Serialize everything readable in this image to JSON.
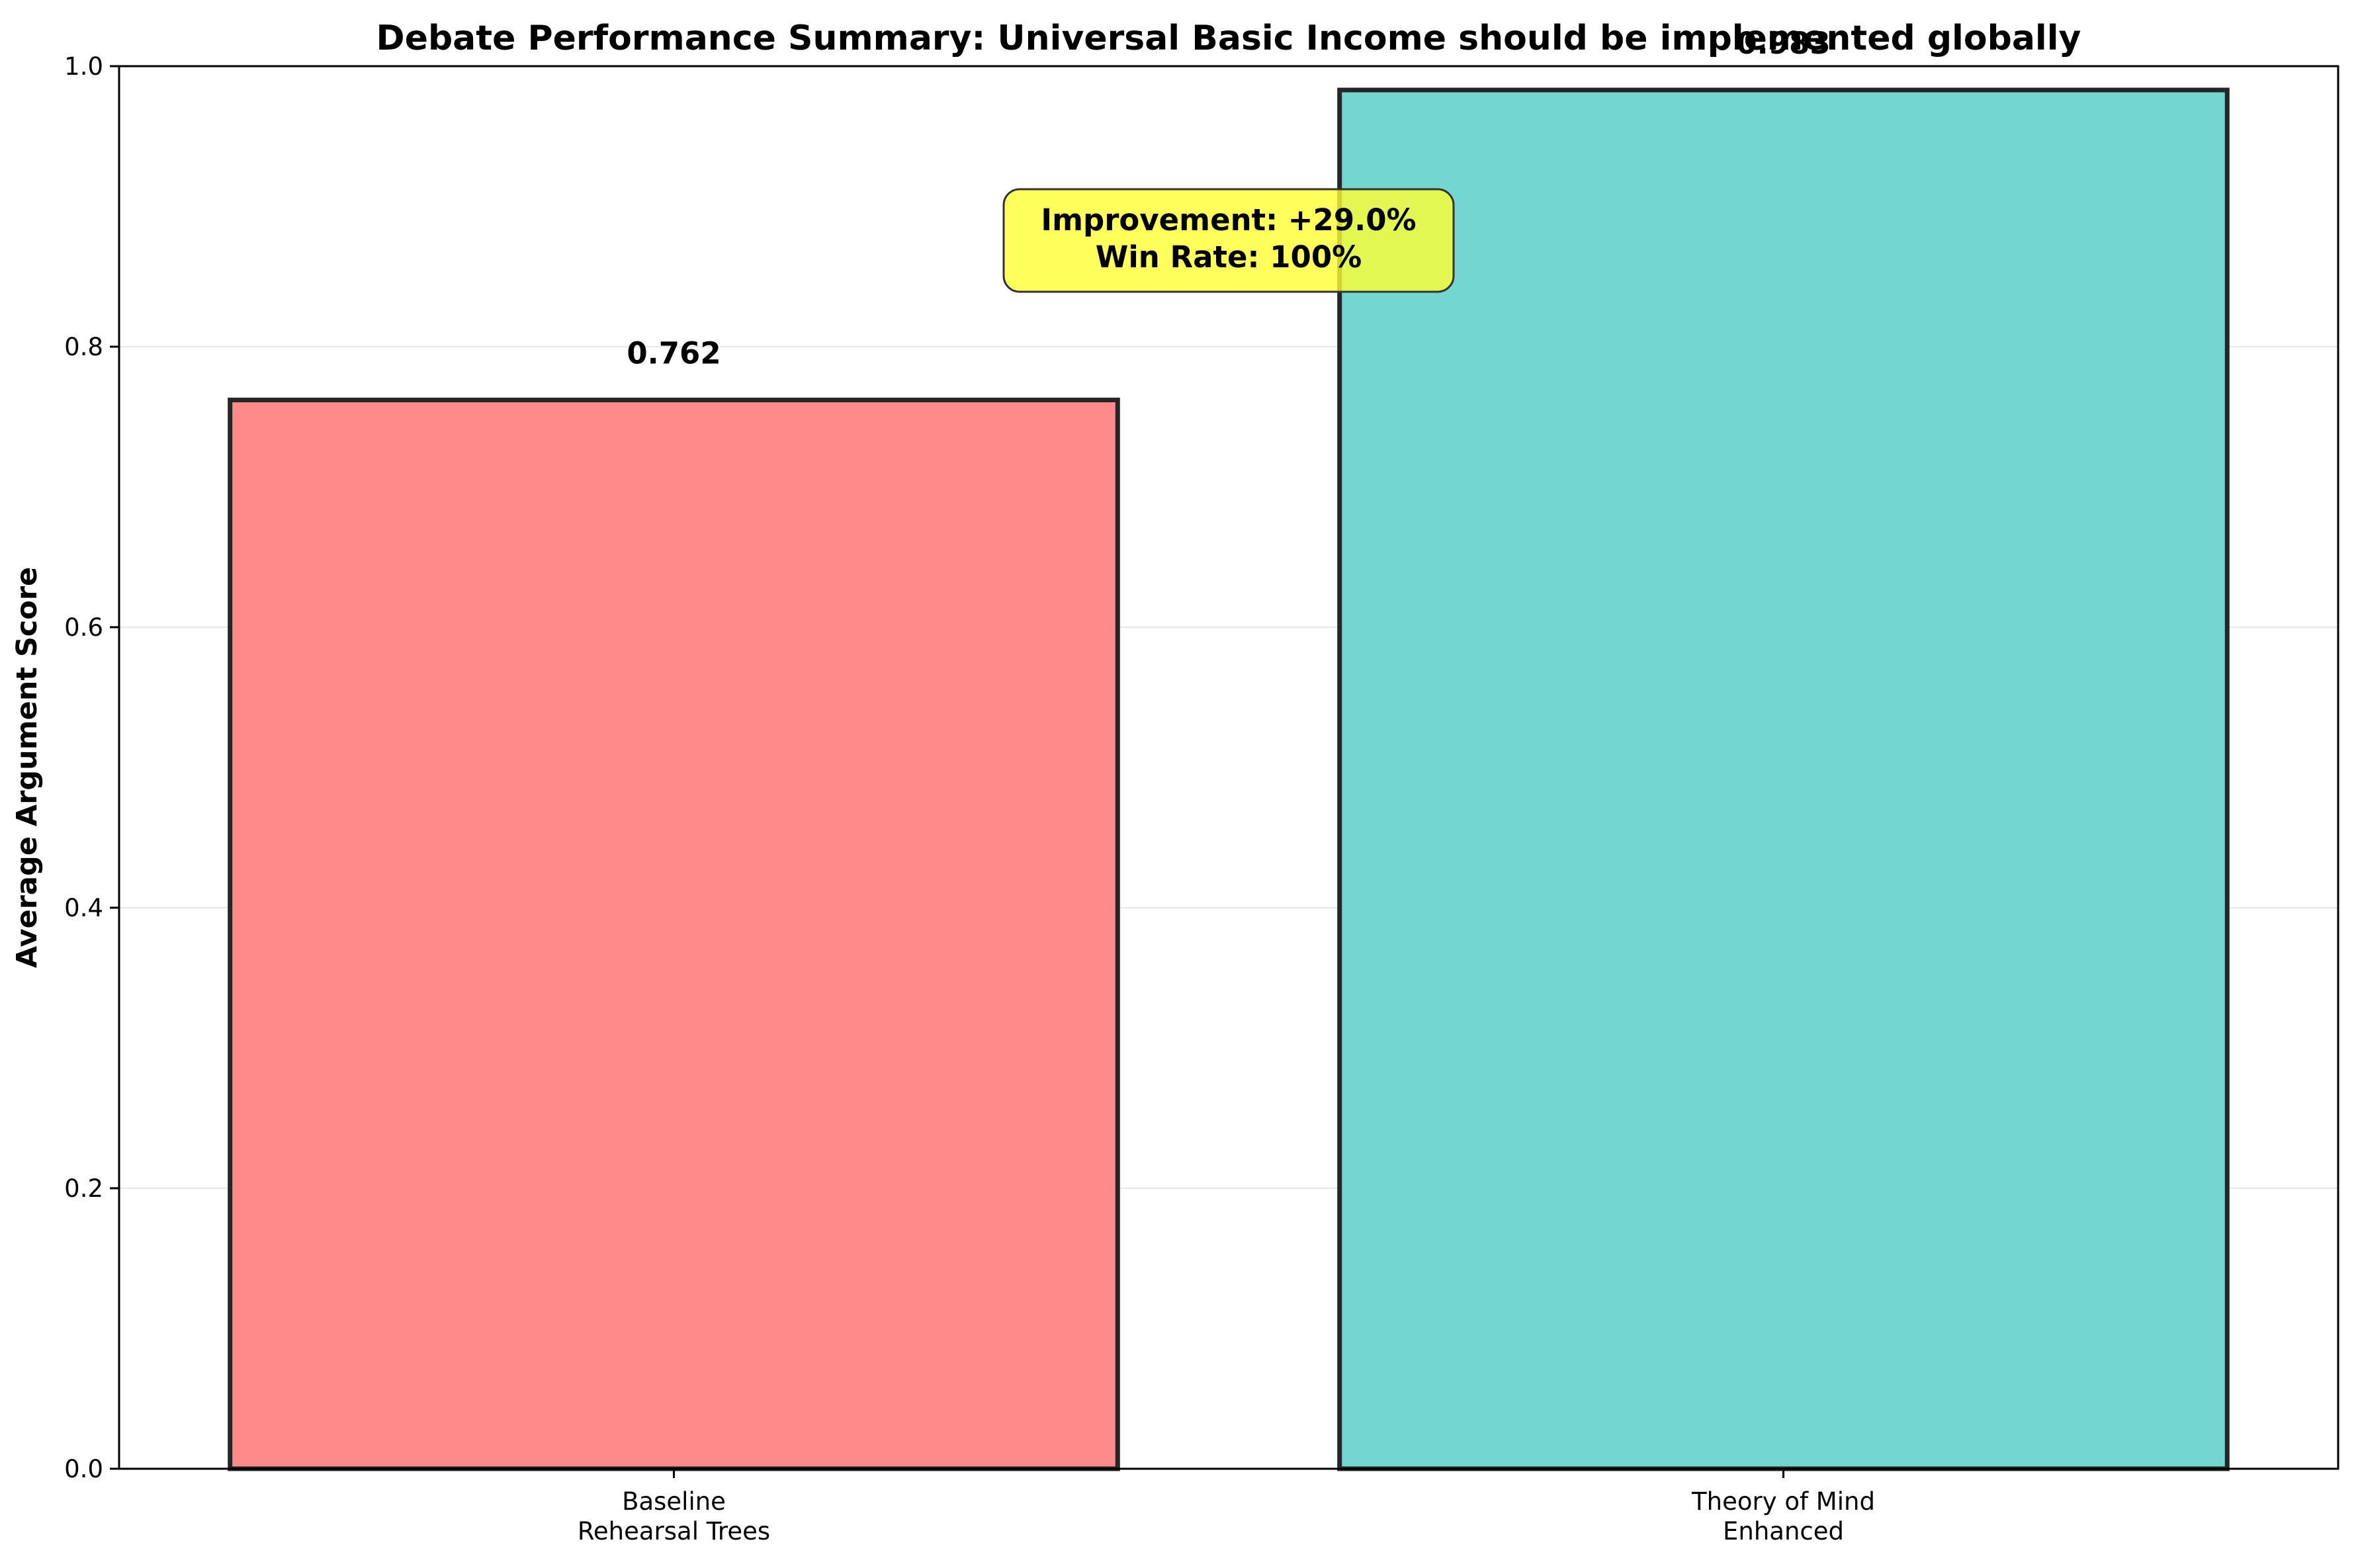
{
  "chart_data": {
    "type": "bar",
    "title": "Debate Performance Summary: Universal Basic Income should be implemented globally",
    "xlabel": "",
    "ylabel": "Average Argument Score",
    "ylim": [
      0,
      1.0
    ],
    "yticks": [
      "0.0",
      "0.2",
      "0.4",
      "0.6",
      "0.8",
      "1.0"
    ],
    "grid": "y",
    "categories": [
      [
        "Baseline",
        "Rehearsal Trees"
      ],
      [
        "Theory of Mind",
        "Enhanced"
      ]
    ],
    "values": [
      0.762,
      0.983
    ],
    "value_labels": [
      "0.762",
      "0.983"
    ],
    "colors": [
      "#ff8a8a",
      "#73d6d0"
    ],
    "annotation": [
      "Improvement: +29.0%",
      "Win Rate: 100%"
    ],
    "annotation_color": "#ffff33"
  }
}
